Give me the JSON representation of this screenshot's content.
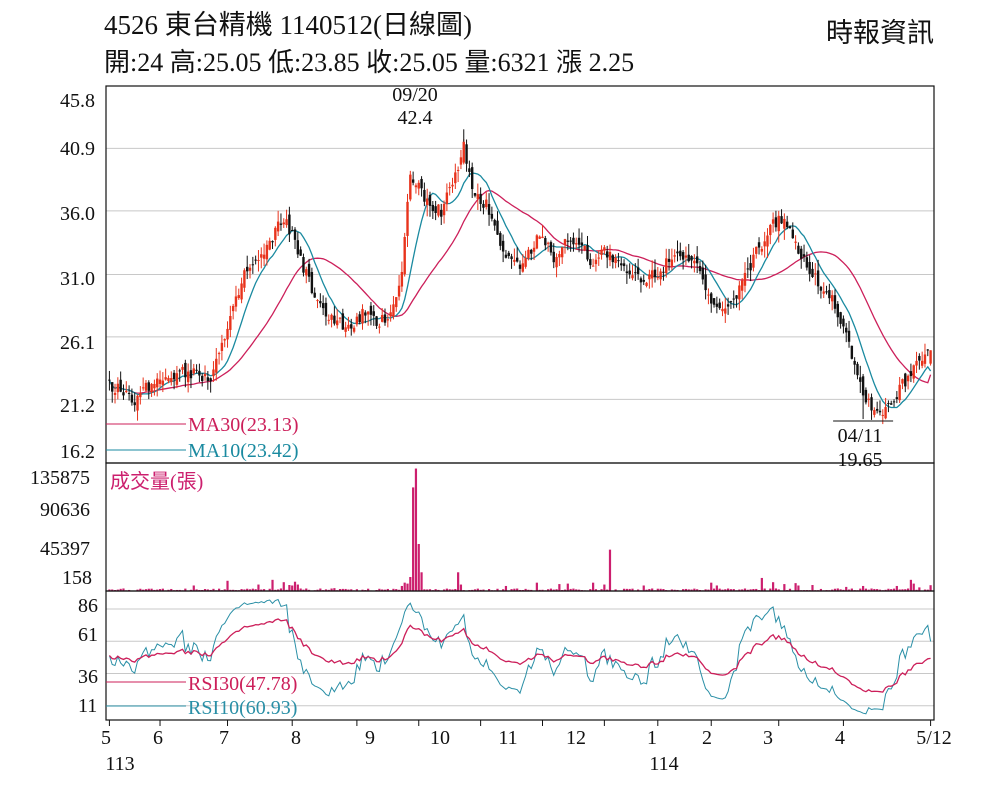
{
  "header": {
    "title": "4526  東台精機 1140512(日線圖)",
    "source": "時報資訊",
    "info": "開:24 高:25.05 低:23.85 收:25.05 量:6321 漲 2.25"
  },
  "colors": {
    "up": "#e8331c",
    "down": "#111111",
    "ma30": "#cc1f5a",
    "ma10": "#1a8aa0",
    "volume": "#cc1f6e",
    "rsi30": "#cc1f5a",
    "rsi10": "#2a8fa6",
    "grid": "#c8c8c8"
  },
  "chart_data": [
    {
      "type": "candlestick",
      "panel": "price",
      "ylim": [
        16.2,
        45.8
      ],
      "yticks": [
        "45.8",
        "40.9",
        "36.0",
        "31.0",
        "26.1",
        "21.2",
        "16.2"
      ],
      "grid": true,
      "price_knots": [
        [
          0,
          22.5
        ],
        [
          8,
          21.0
        ],
        [
          15,
          22.5
        ],
        [
          25,
          23.5
        ],
        [
          36,
          23.0
        ],
        [
          42,
          26.5
        ],
        [
          48,
          31.0
        ],
        [
          55,
          32.5
        ],
        [
          62,
          35.5
        ],
        [
          66,
          33.5
        ],
        [
          70,
          31.0
        ],
        [
          74,
          28.5
        ],
        [
          80,
          27.5
        ],
        [
          86,
          26.5
        ],
        [
          90,
          28.0
        ],
        [
          95,
          27.0
        ],
        [
          100,
          28.0
        ],
        [
          104,
          31.0
        ],
        [
          107,
          39.0
        ],
        [
          112,
          37.0
        ],
        [
          118,
          36.0
        ],
        [
          124,
          39.0
        ],
        [
          126,
          41.5
        ],
        [
          129,
          37.5
        ],
        [
          134,
          36.5
        ],
        [
          140,
          33.0
        ],
        [
          146,
          31.5
        ],
        [
          152,
          34.0
        ],
        [
          158,
          32.5
        ],
        [
          164,
          34.0
        ],
        [
          172,
          32.0
        ],
        [
          176,
          33.0
        ],
        [
          182,
          31.5
        ],
        [
          190,
          30.5
        ],
        [
          196,
          31.5
        ],
        [
          202,
          33.0
        ],
        [
          208,
          32.0
        ],
        [
          214,
          28.5
        ],
        [
          220,
          28.0
        ],
        [
          226,
          31.0
        ],
        [
          232,
          33.5
        ],
        [
          238,
          35.5
        ],
        [
          244,
          33.5
        ],
        [
          250,
          31.0
        ],
        [
          256,
          29.5
        ],
        [
          262,
          26.5
        ],
        [
          268,
          21.5
        ],
        [
          274,
          20.0
        ],
        [
          280,
          21.5
        ],
        [
          284,
          23.0
        ],
        [
          288,
          24.5
        ],
        [
          292,
          25.05
        ]
      ],
      "moving_averages": [
        {
          "name": "MA30",
          "value": "23.13"
        },
        {
          "name": "MA10",
          "value": "23.42"
        }
      ],
      "annotations": [
        {
          "date": "09/20",
          "value": "42.4"
        },
        {
          "date": "04/11",
          "value": "19.65"
        }
      ]
    },
    {
      "type": "bar",
      "panel": "volume",
      "name": "成交量(張)",
      "ylim": [
        158,
        135875
      ],
      "yticks": [
        "135875",
        "90636",
        "45397",
        "158"
      ],
      "spikes": [
        [
          30,
          6000
        ],
        [
          42,
          11000
        ],
        [
          53,
          7000
        ],
        [
          58,
          12000
        ],
        [
          62,
          9500
        ],
        [
          64,
          6500
        ],
        [
          65,
          6000
        ],
        [
          66,
          10000
        ],
        [
          67,
          7000
        ],
        [
          68,
          2800
        ],
        [
          70,
          2800
        ],
        [
          80,
          3200
        ],
        [
          86,
          2000
        ],
        [
          96,
          2500
        ],
        [
          104,
          5500
        ],
        [
          105,
          9000
        ],
        [
          106,
          8000
        ],
        [
          107,
          15000
        ],
        [
          108,
          110000
        ],
        [
          109,
          130000
        ],
        [
          110,
          50000
        ],
        [
          111,
          20000
        ],
        [
          124,
          20000
        ],
        [
          125,
          7000
        ],
        [
          141,
          5500
        ],
        [
          152,
          9000
        ],
        [
          160,
          7500
        ],
        [
          163,
          8000
        ],
        [
          172,
          9000
        ],
        [
          176,
          7000
        ],
        [
          178,
          44000
        ],
        [
          190,
          6000
        ],
        [
          214,
          9000
        ],
        [
          216,
          6000
        ],
        [
          232,
          14000
        ],
        [
          236,
          9500
        ],
        [
          240,
          7500
        ],
        [
          244,
          8500
        ],
        [
          245,
          6000
        ],
        [
          250,
          6500
        ],
        [
          262,
          4500
        ],
        [
          268,
          5500
        ],
        [
          280,
          5500
        ],
        [
          285,
          12000
        ],
        [
          286,
          8000
        ],
        [
          288,
          4000
        ]
      ]
    },
    {
      "type": "line",
      "panel": "rsi",
      "ylim": [
        0,
        100
      ],
      "yticks": [
        "86",
        "61",
        "36",
        "11"
      ],
      "series": [
        {
          "name": "RSI30",
          "value": "47.78"
        },
        {
          "name": "RSI10",
          "value": "60.93"
        }
      ]
    }
  ],
  "xaxis": {
    "months": [
      "5",
      "6",
      "7",
      "8",
      "9",
      "10",
      "11",
      "12",
      "1",
      "2",
      "3",
      "4",
      "5/12"
    ],
    "month_days": [
      0,
      18,
      42,
      65,
      88,
      110,
      132,
      154,
      176,
      195,
      214,
      238,
      261,
      292
    ],
    "years": [
      "113",
      "114"
    ]
  }
}
